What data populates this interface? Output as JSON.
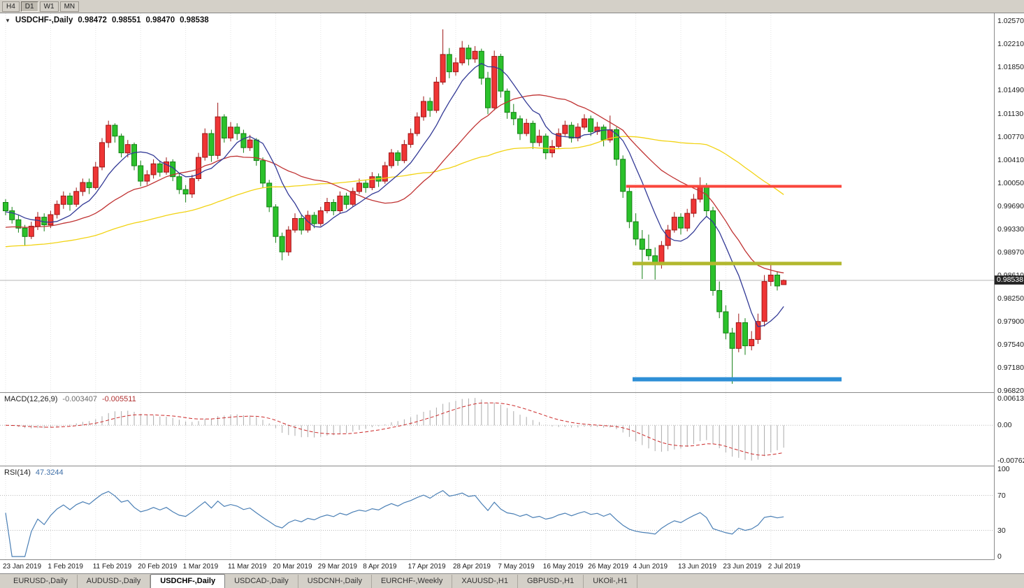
{
  "toolbar": {
    "timeframes": [
      {
        "label": "H4",
        "active": false
      },
      {
        "label": "D1",
        "active": true
      },
      {
        "label": "W1",
        "active": false
      },
      {
        "label": "MN",
        "active": false
      }
    ]
  },
  "chart": {
    "title": {
      "symbol": "USDCHF-,Daily",
      "open": "0.98472",
      "high": "0.98551",
      "low": "0.98470",
      "close": "0.98538"
    },
    "price_axis": {
      "labels": [
        "1.02570",
        "1.02210",
        "1.01850",
        "1.01490",
        "1.01130",
        "1.00770",
        "1.00410",
        "1.00050",
        "0.99690",
        "0.99330",
        "0.98970",
        "0.98610",
        "0.98250",
        "0.97900",
        "0.97540",
        "0.97180",
        "0.96820"
      ],
      "current_price_label": "0.98538"
    }
  },
  "indicators": {
    "macd": {
      "label": "MACD(12,26,9)",
      "value_main": "-0.003407",
      "value_signal": "-0.005511",
      "axis_labels": [
        "0.00613",
        "0.00",
        "-0.00762"
      ]
    },
    "rsi": {
      "label": "RSI(14)",
      "value": "47.3244",
      "axis_labels": [
        "100",
        "70",
        "30",
        "0"
      ],
      "axis_values": [
        100,
        70,
        30,
        0
      ],
      "guide_levels": [
        70,
        30
      ]
    }
  },
  "tabs": [
    {
      "label": "EURUSD-,Daily",
      "active": false
    },
    {
      "label": "AUDUSD-,Daily",
      "active": false
    },
    {
      "label": "USDCHF-,Daily",
      "active": true
    },
    {
      "label": "USDCAD-,Daily",
      "active": false
    },
    {
      "label": "USDCNH-,Daily",
      "active": false
    },
    {
      "label": "EURCHF-,Weekly",
      "active": false
    },
    {
      "label": "XAUUSD-,H1",
      "active": false
    },
    {
      "label": "GBPUSD-,H1",
      "active": false
    },
    {
      "label": "UKOil-,H1",
      "active": false
    }
  ],
  "chart_data": {
    "type": "candlestick",
    "symbol": "USDCHF",
    "timeframe": "Daily",
    "current_price": 0.98538,
    "price_axis_values": [
      1.0257,
      0.9682
    ],
    "x_axis_labels": [
      "23 Jan 2019",
      "1 Feb 2019",
      "11 Feb 2019",
      "20 Feb 2019",
      "1 Mar 2019",
      "11 Mar 2019",
      "20 Mar 2019",
      "29 Mar 2019",
      "8 Apr 2019",
      "17 Apr 2019",
      "28 Apr 2019",
      "7 May 2019",
      "16 May 2019",
      "26 May 2019",
      "4 Jun 2019",
      "13 Jun 2019",
      "23 Jun 2019",
      "2 Jul 2019"
    ],
    "label_every_n_bars": 7,
    "colors": {
      "bull": "#ef3535",
      "bull_border": "#9e1616",
      "bear": "#2bc12b",
      "bear_border": "#148014",
      "ma_fast": "#333a96",
      "ma_mid": "#c03333",
      "ma_slow": "#f2d313",
      "macd_hist": "#ababab",
      "macd_signal": "#cc2a2a",
      "rsi_line": "#4a7fb5",
      "level_red": "#fa463c",
      "level_olive": "#b2b82e",
      "level_blue": "#2e8fd6",
      "price_line": "#b4b4b4",
      "badge_bg": "#262626",
      "grid": "#e3e3e3",
      "guide_dotted": "#b8b8b8"
    },
    "moving_averages": [
      {
        "name": "slow",
        "period": 50,
        "color": "#f2d313",
        "warmup_seed": 0.9905
      },
      {
        "name": "medium",
        "period": 21,
        "color": "#c03333",
        "warmup_seed": 0.9935
      },
      {
        "name": "fast",
        "period": 8,
        "color": "#333a96",
        "warmup_seed": 0.996
      }
    ],
    "horizontal_levels": [
      {
        "name": "resistance",
        "price": 1.0,
        "color": "#fa463c",
        "thickness": 4,
        "from_bar": 96.5,
        "to_bar": 130
      },
      {
        "name": "minor-resistance",
        "price": 0.988,
        "color": "#b2b82e",
        "thickness": 5,
        "from_bar": 97.5,
        "to_bar": 130
      },
      {
        "name": "support",
        "price": 0.97,
        "color": "#2e8fd6",
        "thickness": 6,
        "from_bar": 97.5,
        "to_bar": 130
      }
    ],
    "indicator_params": {
      "macd": {
        "fast": 12,
        "slow": 26,
        "signal": 9,
        "current_main": -0.003407,
        "current_signal": -0.005511,
        "scale_max": 0.00613,
        "scale_min": -0.00762
      },
      "rsi": {
        "period": 14,
        "current": 47.3244
      }
    },
    "ohlc": [
      [
        0.9975,
        0.998,
        0.9955,
        0.9962
      ],
      [
        0.9962,
        0.9968,
        0.9942,
        0.9948
      ],
      [
        0.9948,
        0.9955,
        0.9928,
        0.9935
      ],
      [
        0.9935,
        0.994,
        0.9908,
        0.9922
      ],
      [
        0.9922,
        0.9945,
        0.9918,
        0.9938
      ],
      [
        0.9938,
        0.996,
        0.9932,
        0.9952
      ],
      [
        0.9952,
        0.9958,
        0.993,
        0.994
      ],
      [
        0.994,
        0.9962,
        0.9935,
        0.9956
      ],
      [
        0.9956,
        0.9978,
        0.995,
        0.9972
      ],
      [
        0.9972,
        0.9992,
        0.9965,
        0.9985
      ],
      [
        0.9985,
        0.999,
        0.9962,
        0.9972
      ],
      [
        0.9972,
        0.9998,
        0.9968,
        0.9992
      ],
      [
        0.9992,
        1.0012,
        0.9985,
        1.0006
      ],
      [
        1.0006,
        1.0012,
        0.9988,
        0.9998
      ],
      [
        0.9998,
        1.0038,
        0.9995,
        1.003
      ],
      [
        1.003,
        1.0075,
        1.0025,
        1.0068
      ],
      [
        1.0068,
        1.0102,
        1.006,
        1.0095
      ],
      [
        1.0095,
        1.0098,
        1.0068,
        1.0078
      ],
      [
        1.0078,
        1.0082,
        1.0045,
        1.0052
      ],
      [
        1.0052,
        1.0072,
        1.0045,
        1.0065
      ],
      [
        1.0065,
        1.0068,
        1.0025,
        1.0032
      ],
      [
        1.0032,
        1.004,
        1.0,
        1.0008
      ],
      [
        1.0008,
        1.0025,
        1.0002,
        1.0018
      ],
      [
        1.0018,
        1.0042,
        1.0012,
        1.0035
      ],
      [
        1.0035,
        1.004,
        1.0015,
        1.0022
      ],
      [
        1.0022,
        1.0045,
        1.0018,
        1.0038
      ],
      [
        1.0038,
        1.0042,
        1.0008,
        1.0015
      ],
      [
        1.0015,
        1.002,
        0.9988,
        0.9995
      ],
      [
        0.9995,
        1.0002,
        0.9975,
        0.9988
      ],
      [
        0.9988,
        1.0018,
        0.9982,
        1.0012
      ],
      [
        1.0012,
        1.0052,
        1.0008,
        1.0045
      ],
      [
        1.0045,
        1.009,
        1.004,
        1.0082
      ],
      [
        1.0082,
        1.0088,
        1.0038,
        1.0048
      ],
      [
        1.0048,
        1.013,
        1.0042,
        1.0108
      ],
      [
        1.0108,
        1.0112,
        1.0068,
        1.0075
      ],
      [
        1.0075,
        1.01,
        1.007,
        1.0092
      ],
      [
        1.0092,
        1.0098,
        1.0072,
        1.0082
      ],
      [
        1.0082,
        1.0088,
        1.0052,
        1.006
      ],
      [
        1.006,
        1.008,
        1.0055,
        1.0072
      ],
      [
        1.0072,
        1.0075,
        1.0032,
        1.004
      ],
      [
        1.004,
        1.0045,
        0.9998,
        1.0005
      ],
      [
        1.0005,
        1.001,
        0.996,
        0.9968
      ],
      [
        0.9968,
        0.9972,
        0.9912,
        0.9922
      ],
      [
        0.9922,
        0.9928,
        0.9885,
        0.9898
      ],
      [
        0.9898,
        0.9938,
        0.9892,
        0.9932
      ],
      [
        0.9932,
        0.9958,
        0.9928,
        0.995
      ],
      [
        0.995,
        0.9955,
        0.9925,
        0.9932
      ],
      [
        0.9932,
        0.9962,
        0.9928,
        0.9955
      ],
      [
        0.9955,
        0.996,
        0.9935,
        0.9942
      ],
      [
        0.9942,
        0.9968,
        0.9938,
        0.9962
      ],
      [
        0.9962,
        0.9982,
        0.9958,
        0.9975
      ],
      [
        0.9975,
        0.998,
        0.9955,
        0.9962
      ],
      [
        0.9962,
        0.9992,
        0.9958,
        0.9985
      ],
      [
        0.9985,
        0.999,
        0.9965,
        0.9972
      ],
      [
        0.9972,
        0.9998,
        0.9968,
        0.9992
      ],
      [
        0.9992,
        1.0012,
        0.9988,
        1.0005
      ],
      [
        1.0005,
        1.001,
        0.999,
        0.9998
      ],
      [
        0.9998,
        1.0022,
        0.9994,
        1.0015
      ],
      [
        1.0015,
        1.002,
        0.9999,
        1.0008
      ],
      [
        1.0008,
        1.0038,
        1.0004,
        1.0032
      ],
      [
        1.0032,
        1.0058,
        1.0028,
        1.0052
      ],
      [
        1.0052,
        1.0056,
        1.0032,
        1.004
      ],
      [
        1.004,
        1.0072,
        1.0036,
        1.0065
      ],
      [
        1.0065,
        1.009,
        1.006,
        1.0082
      ],
      [
        1.0082,
        1.0115,
        1.0078,
        1.0108
      ],
      [
        1.0108,
        1.014,
        1.0102,
        1.0132
      ],
      [
        1.0132,
        1.0138,
        1.0108,
        1.0118
      ],
      [
        1.0118,
        1.017,
        1.0114,
        1.0162
      ],
      [
        1.0162,
        1.0244,
        1.0158,
        1.0205
      ],
      [
        1.0205,
        1.0215,
        1.0168,
        1.0178
      ],
      [
        1.0178,
        1.02,
        1.0172,
        1.0192
      ],
      [
        1.0192,
        1.0226,
        1.0188,
        1.0215
      ],
      [
        1.0215,
        1.022,
        1.0188,
        1.0198
      ],
      [
        1.0198,
        1.0218,
        1.0192,
        1.021
      ],
      [
        1.021,
        1.0214,
        1.0158,
        1.0168
      ],
      [
        1.0168,
        1.0178,
        1.0112,
        1.0122
      ],
      [
        1.0122,
        1.0211,
        1.0118,
        1.0202
      ],
      [
        1.0202,
        1.0206,
        1.0138,
        1.0148
      ],
      [
        1.0148,
        1.0152,
        1.0105,
        1.0115
      ],
      [
        1.0115,
        1.0128,
        1.0095,
        1.0105
      ],
      [
        1.0105,
        1.011,
        1.0072,
        1.0082
      ],
      [
        1.0082,
        1.0105,
        1.0078,
        1.0098
      ],
      [
        1.0098,
        1.0102,
        1.0058,
        1.0068
      ],
      [
        1.0068,
        1.0088,
        1.0062,
        1.0078
      ],
      [
        1.0078,
        1.0082,
        1.0042,
        1.0052
      ],
      [
        1.0052,
        1.0072,
        1.0045,
        1.0062
      ],
      [
        1.0062,
        1.009,
        1.0058,
        1.0082
      ],
      [
        1.0082,
        1.0102,
        1.0078,
        1.0095
      ],
      [
        1.0095,
        1.01,
        1.0068,
        1.0075
      ],
      [
        1.0075,
        1.0098,
        1.007,
        1.0092
      ],
      [
        1.0092,
        1.0112,
        1.0088,
        1.0105
      ],
      [
        1.0105,
        1.011,
        1.0078,
        1.0085
      ],
      [
        1.0085,
        1.01,
        1.008,
        1.0092
      ],
      [
        1.0092,
        1.0096,
        1.0062,
        1.0072
      ],
      [
        1.0072,
        1.011,
        1.0068,
        1.0088
      ],
      [
        1.0088,
        1.0092,
        1.0032,
        1.0042
      ],
      [
        1.0042,
        1.0048,
        0.9982,
        0.9992
      ],
      [
        0.9992,
        0.9998,
        0.9935,
        0.9945
      ],
      [
        0.9945,
        0.9958,
        0.9908,
        0.9918
      ],
      [
        0.9918,
        0.9932,
        0.9856,
        0.9902
      ],
      [
        0.9902,
        0.9925,
        0.9885,
        0.9892
      ],
      [
        0.9892,
        0.9905,
        0.9855,
        0.9878
      ],
      [
        0.9878,
        0.9915,
        0.9872,
        0.9908
      ],
      [
        0.9908,
        0.994,
        0.9902,
        0.9932
      ],
      [
        0.9932,
        0.996,
        0.9928,
        0.9952
      ],
      [
        0.9952,
        0.9958,
        0.9925,
        0.9935
      ],
      [
        0.9935,
        0.9965,
        0.993,
        0.9958
      ],
      [
        0.9958,
        0.9988,
        0.9952,
        0.998
      ],
      [
        0.998,
        1.0014,
        0.9975,
        1.0
      ],
      [
        1.0,
        1.0005,
        0.9952,
        0.9962
      ],
      [
        0.9962,
        0.9968,
        0.983,
        0.9838
      ],
      [
        0.9838,
        0.9852,
        0.9795,
        0.9805
      ],
      [
        0.9805,
        0.9815,
        0.9762,
        0.9772
      ],
      [
        0.9772,
        0.978,
        0.9693,
        0.9748
      ],
      [
        0.9748,
        0.9802,
        0.9742,
        0.9788
      ],
      [
        0.9788,
        0.9795,
        0.9738,
        0.9752
      ],
      [
        0.9752,
        0.9775,
        0.9745,
        0.9762
      ],
      [
        0.9762,
        0.9802,
        0.9755,
        0.979
      ],
      [
        0.979,
        0.9862,
        0.9782,
        0.9852
      ],
      [
        0.9852,
        0.9878,
        0.9845,
        0.9862
      ],
      [
        0.9862,
        0.9868,
        0.9838,
        0.9845
      ],
      [
        0.98472,
        0.98551,
        0.9847,
        0.98538
      ]
    ]
  }
}
